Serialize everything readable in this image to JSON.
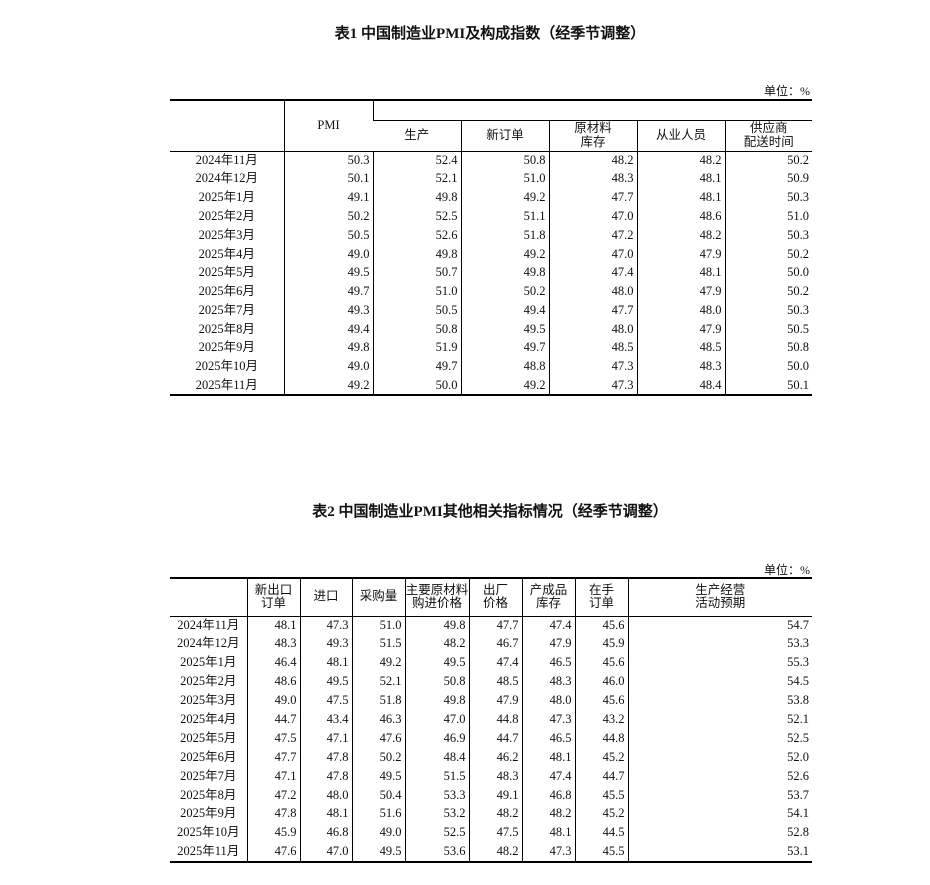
{
  "table1": {
    "title": "表1 中国制造业PMI及构成指数（经季节调整）",
    "unit": "单位：%",
    "headers": [
      "PMI",
      "生产",
      "新订单",
      "原材料\n库存",
      "从业人员",
      "供应商\n配送时间"
    ],
    "rows": [
      [
        "2024年11月",
        "50.3",
        "52.4",
        "50.8",
        "48.2",
        "48.2",
        "50.2"
      ],
      [
        "2024年12月",
        "50.1",
        "52.1",
        "51.0",
        "48.3",
        "48.1",
        "50.9"
      ],
      [
        "2025年1月",
        "49.1",
        "49.8",
        "49.2",
        "47.7",
        "48.1",
        "50.3"
      ],
      [
        "2025年2月",
        "50.2",
        "52.5",
        "51.1",
        "47.0",
        "48.6",
        "51.0"
      ],
      [
        "2025年3月",
        "50.5",
        "52.6",
        "51.8",
        "47.2",
        "48.2",
        "50.3"
      ],
      [
        "2025年4月",
        "49.0",
        "49.8",
        "49.2",
        "47.0",
        "47.9",
        "50.2"
      ],
      [
        "2025年5月",
        "49.5",
        "50.7",
        "49.8",
        "47.4",
        "48.1",
        "50.0"
      ],
      [
        "2025年6月",
        "49.7",
        "51.0",
        "50.2",
        "48.0",
        "47.9",
        "50.2"
      ],
      [
        "2025年7月",
        "49.3",
        "50.5",
        "49.4",
        "47.7",
        "48.0",
        "50.3"
      ],
      [
        "2025年8月",
        "49.4",
        "50.8",
        "49.5",
        "48.0",
        "47.9",
        "50.5"
      ],
      [
        "2025年9月",
        "49.8",
        "51.9",
        "49.7",
        "48.5",
        "48.5",
        "50.8"
      ],
      [
        "2025年10月",
        "49.0",
        "49.7",
        "48.8",
        "47.3",
        "48.3",
        "50.0"
      ],
      [
        "2025年11月",
        "49.2",
        "50.0",
        "49.2",
        "47.3",
        "48.4",
        "50.1"
      ]
    ]
  },
  "table2": {
    "title": "表2 中国制造业PMI其他相关指标情况（经季节调整）",
    "unit": "单位：%",
    "headers": [
      "新出口\n订单",
      "进口",
      "采购量",
      "主要原材料\n购进价格",
      "出厂\n价格",
      "产成品\n库存",
      "在手\n订单",
      "生产经营\n活动预期"
    ],
    "rows": [
      [
        "2024年11月",
        "48.1",
        "47.3",
        "51.0",
        "49.8",
        "47.7",
        "47.4",
        "45.6",
        "54.7"
      ],
      [
        "2024年12月",
        "48.3",
        "49.3",
        "51.5",
        "48.2",
        "46.7",
        "47.9",
        "45.9",
        "53.3"
      ],
      [
        "2025年1月",
        "46.4",
        "48.1",
        "49.2",
        "49.5",
        "47.4",
        "46.5",
        "45.6",
        "55.3"
      ],
      [
        "2025年2月",
        "48.6",
        "49.5",
        "52.1",
        "50.8",
        "48.5",
        "48.3",
        "46.0",
        "54.5"
      ],
      [
        "2025年3月",
        "49.0",
        "47.5",
        "51.8",
        "49.8",
        "47.9",
        "48.0",
        "45.6",
        "53.8"
      ],
      [
        "2025年4月",
        "44.7",
        "43.4",
        "46.3",
        "47.0",
        "44.8",
        "47.3",
        "43.2",
        "52.1"
      ],
      [
        "2025年5月",
        "47.5",
        "47.1",
        "47.6",
        "46.9",
        "44.7",
        "46.5",
        "44.8",
        "52.5"
      ],
      [
        "2025年6月",
        "47.7",
        "47.8",
        "50.2",
        "48.4",
        "46.2",
        "48.1",
        "45.2",
        "52.0"
      ],
      [
        "2025年7月",
        "47.1",
        "47.8",
        "49.5",
        "51.5",
        "48.3",
        "47.4",
        "44.7",
        "52.6"
      ],
      [
        "2025年8月",
        "47.2",
        "48.0",
        "50.4",
        "53.3",
        "49.1",
        "46.8",
        "45.5",
        "53.7"
      ],
      [
        "2025年9月",
        "47.8",
        "48.1",
        "51.6",
        "53.2",
        "48.2",
        "48.2",
        "45.2",
        "54.1"
      ],
      [
        "2025年10月",
        "45.9",
        "46.8",
        "49.0",
        "52.5",
        "47.5",
        "48.1",
        "44.5",
        "52.8"
      ],
      [
        "2025年11月",
        "47.6",
        "47.0",
        "49.5",
        "53.6",
        "48.2",
        "47.3",
        "45.5",
        "53.1"
      ]
    ]
  }
}
